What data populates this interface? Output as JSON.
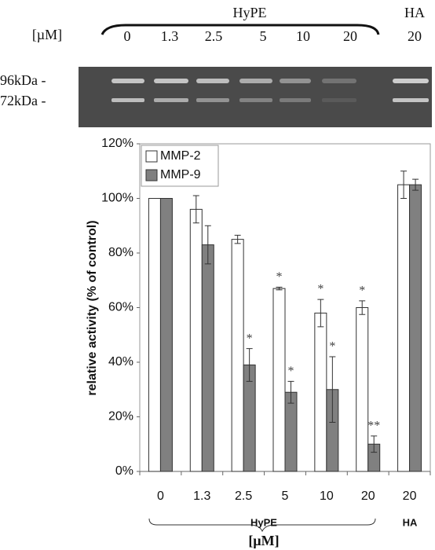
{
  "gel": {
    "group_labels": [
      "HyPE",
      "HA"
    ],
    "unit_label": "[µM]",
    "lanes": [
      "0",
      "1.3",
      "2.5",
      "5",
      "10",
      "20",
      "20"
    ],
    "markers": [
      "96kDa -",
      "72kDa -"
    ]
  },
  "chart_data": {
    "type": "bar",
    "ylabel": "relative activity   (% of control)",
    "categories": [
      "0",
      "1.3",
      "2.5",
      "5",
      "10",
      "20",
      "20"
    ],
    "series": [
      {
        "name": "MMP-2",
        "color": "#ffffff",
        "values": [
          100,
          96,
          85,
          67,
          58,
          60,
          105
        ],
        "errors": [
          null,
          5,
          1.5,
          0.5,
          5,
          2.5,
          5
        ],
        "markers": [
          null,
          null,
          null,
          "*",
          "*",
          "*",
          null
        ]
      },
      {
        "name": "MMP-9",
        "color": "#808080",
        "values": [
          100,
          83,
          39,
          29,
          30,
          10,
          105
        ],
        "errors": [
          null,
          7,
          6,
          4,
          12,
          3,
          2
        ],
        "markers": [
          null,
          null,
          "*",
          "*",
          "*",
          "**",
          null
        ]
      }
    ],
    "ylim": [
      0,
      120
    ],
    "yticks": [
      {
        "value": 0,
        "label": "0%"
      },
      {
        "value": 20,
        "label": "20%"
      },
      {
        "value": 40,
        "label": "40%"
      },
      {
        "value": 60,
        "label": "60%"
      },
      {
        "value": 80,
        "label": "80%"
      },
      {
        "value": 100,
        "label": "100%"
      },
      {
        "value": 120,
        "label": "120%"
      }
    ],
    "group_labels": [
      "HyPE",
      "HA"
    ],
    "xlabel": "[µM]",
    "legend": "upper left"
  }
}
